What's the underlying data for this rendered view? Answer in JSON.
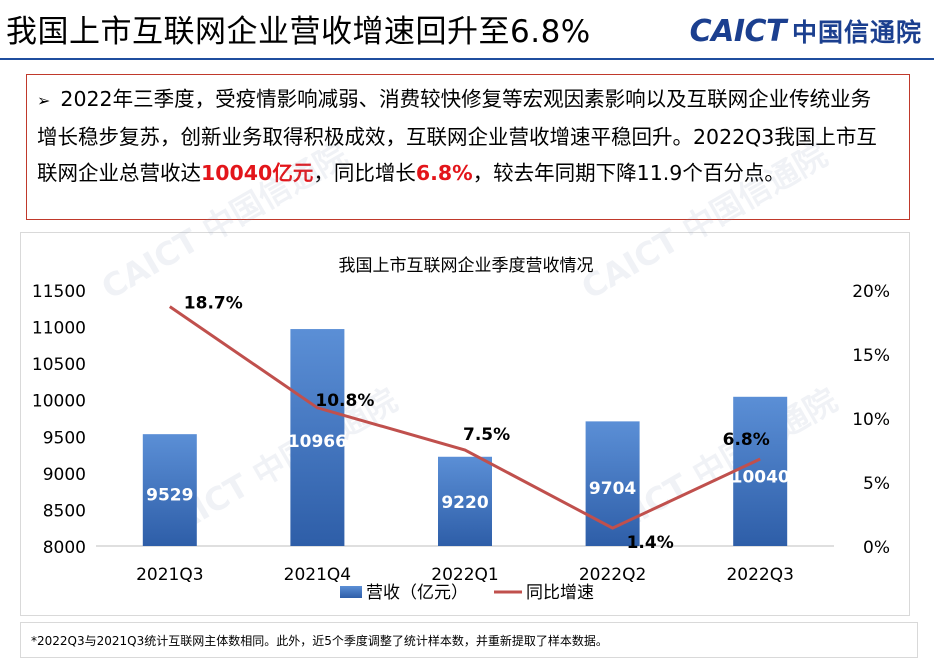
{
  "header": {
    "title": "我国上市互联网企业营收增速回升至6.8%",
    "brand_latin": "CAICT",
    "brand_cn": "中国信通院"
  },
  "summary": {
    "bullet": "➢",
    "text_1": "2022年三季度，受疫情影响减弱、消费较快修复等宏观因素影响以及互联网企业传统业务增长稳步复苏，创新业务取得积极成效，互联网企业营收增速平稳回升。2022Q3我国上市互联网企业总营收达",
    "highlight_revenue": "10040亿元",
    "text_2": "，同比增长",
    "highlight_growth": "6.8%",
    "text_3": "，较去年同期下降11.9个百分点。"
  },
  "watermark_text": "CAICT 中国信通院",
  "chart_data": {
    "type": "bar",
    "title": "我国上市互联网企业季度营收情况",
    "categories": [
      "2021Q3",
      "2021Q4",
      "2022Q1",
      "2022Q2",
      "2022Q3"
    ],
    "series": [
      {
        "name": "营收（亿元）",
        "type": "bar",
        "axis": "left",
        "values": [
          9529,
          10966,
          9220,
          9704,
          10040
        ],
        "labels": [
          "9529",
          "10966",
          "9220",
          "9704",
          "10040"
        ],
        "color": "#4a7cc7"
      },
      {
        "name": "同比增速",
        "type": "line",
        "axis": "right",
        "values": [
          18.7,
          10.8,
          7.5,
          1.4,
          6.8
        ],
        "labels": [
          "18.7%",
          "10.8%",
          "7.5%",
          "1.4%",
          "6.8%"
        ],
        "color": "#c0504d"
      }
    ],
    "y_left": {
      "min": 8000,
      "max": 11500,
      "ticks": [
        "8000",
        "8500",
        "9000",
        "9500",
        "10000",
        "10500",
        "11000",
        "11500"
      ]
    },
    "y_right": {
      "min": 0,
      "max": 20,
      "ticks": [
        "0%",
        "5%",
        "10%",
        "15%",
        "20%"
      ]
    },
    "legend_position": "bottom",
    "grid": false
  },
  "footnote": "*2022Q3与2021Q3统计互联网主体数相同。此外，近5个季度调整了统计样本数，并重新提取了样本数据。"
}
